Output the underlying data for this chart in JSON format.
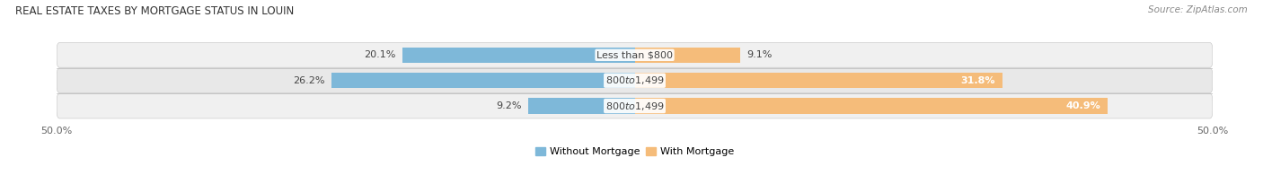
{
  "title": "REAL ESTATE TAXES BY MORTGAGE STATUS IN LOUIN",
  "source": "Source: ZipAtlas.com",
  "rows": [
    {
      "label": "Less than $800",
      "without_mortgage": 20.1,
      "with_mortgage": 9.1
    },
    {
      "label": "$800 to $1,499",
      "without_mortgage": 26.2,
      "with_mortgage": 31.8
    },
    {
      "label": "$800 to $1,499",
      "without_mortgage": 9.2,
      "with_mortgage": 40.9
    }
  ],
  "color_without": "#7EB8D9",
  "color_with": "#F5BC7A",
  "xlim": 50.0,
  "legend_without": "Without Mortgage",
  "legend_with": "With Mortgage",
  "bar_height": 0.62,
  "bg_colors": [
    "#F0F0F0",
    "#E8E8E8",
    "#F0F0F0"
  ],
  "title_fontsize": 8.5,
  "source_fontsize": 7.5,
  "label_fontsize": 8,
  "value_fontsize": 8,
  "tick_fontsize": 8,
  "tick_labels": [
    "50.0%",
    "50.0%"
  ]
}
